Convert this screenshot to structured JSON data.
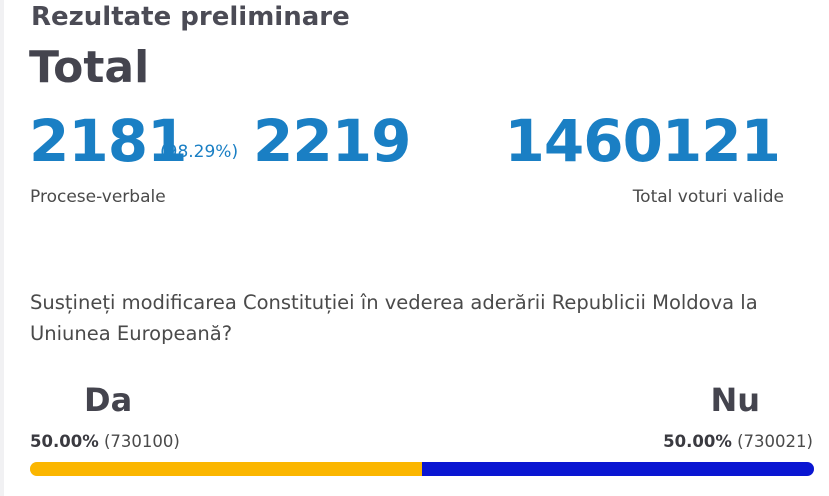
{
  "header": {
    "subtitle": "Rezultate preliminare",
    "title": "Total"
  },
  "counts": {
    "processed": "2181",
    "processed_percent": "(98.29%)",
    "total_protocols": "2219",
    "protocols_caption": "Procese-verbale",
    "valid_votes": "1460121",
    "valid_votes_caption": "Total voturi valide"
  },
  "question": {
    "text": "Susțineți modificarea Constituției în vederea aderării Republicii Moldova la Uniunea Europeană?"
  },
  "options": {
    "yes": {
      "label": "Da",
      "percent": "50.00%",
      "votes": "(730100)",
      "share": 0.50003,
      "color": "#fbb600"
    },
    "no": {
      "label": "Nu",
      "percent": "50.00%",
      "votes": "(730021)",
      "share": 0.49997,
      "color": "#0a16d2"
    }
  },
  "colors": {
    "accent": "#1a7fc4",
    "heading": "#44444e"
  }
}
